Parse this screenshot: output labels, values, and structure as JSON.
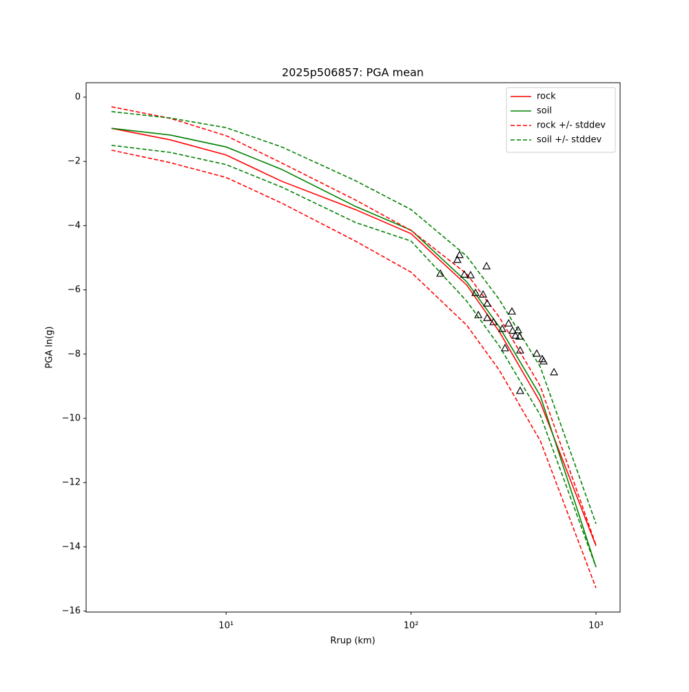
{
  "chart_data": {
    "type": "line",
    "title": "2025p506857: PGA mean",
    "x_label": "Rrup (km)",
    "y_label": "PGA ln(g)",
    "xscale": "log",
    "xlim": [
      1.75,
      1350
    ],
    "ylim": [
      -16.03,
      0.45
    ],
    "xticks": [
      {
        "value": 10,
        "label": "10¹"
      },
      {
        "value": 100,
        "label": "10²"
      },
      {
        "value": 1000,
        "label": "10³"
      }
    ],
    "yticks": [
      {
        "value": -16,
        "label": "−16"
      },
      {
        "value": -14,
        "label": "−14"
      },
      {
        "value": -12,
        "label": "−12"
      },
      {
        "value": -10,
        "label": "−10"
      },
      {
        "value": -8,
        "label": "−8"
      },
      {
        "value": -6,
        "label": "−6"
      },
      {
        "value": -4,
        "label": "−4"
      },
      {
        "value": -2,
        "label": "−2"
      },
      0
    ],
    "legend": "upper right",
    "x": [
      2.4,
      5,
      10,
      20,
      50,
      100,
      200,
      300,
      500,
      1000
    ],
    "series": [
      {
        "name": "rock",
        "color": "#ff0000",
        "style": "solid",
        "values": [
          -0.97,
          -1.33,
          -1.8,
          -2.62,
          -3.5,
          -4.25,
          -5.85,
          -7.3,
          -9.5,
          -13.97
        ]
      },
      {
        "name": "soil",
        "color": "#008000",
        "style": "solid",
        "values": [
          -0.97,
          -1.18,
          -1.55,
          -2.25,
          -3.4,
          -4.14,
          -5.75,
          -7.15,
          -9.3,
          -14.63
        ]
      },
      {
        "name": "rock +/- stddev",
        "color": "#ff0000",
        "style": "dashed",
        "values": [
          -0.3,
          -0.66,
          -1.2,
          -2.05,
          -3.2,
          -4.15,
          -5.5,
          -6.85,
          -9.0,
          -13.95
        ]
      },
      {
        "name": "soil +/- stddev",
        "color": "#008000",
        "style": "dashed",
        "values": [
          -0.45,
          -0.65,
          -0.95,
          -1.55,
          -2.6,
          -3.5,
          -4.95,
          -6.3,
          -8.4,
          -13.28
        ]
      },
      {
        "color": "#ff0000",
        "style": "dashed",
        "values": [
          -1.65,
          -2.04,
          -2.5,
          -3.3,
          -4.48,
          -5.45,
          -7.1,
          -8.5,
          -10.7,
          -15.28
        ]
      },
      {
        "color": "#008000",
        "style": "dashed",
        "values": [
          -1.5,
          -1.72,
          -2.1,
          -2.8,
          -3.9,
          -4.48,
          -6.35,
          -7.75,
          -9.9,
          -14.63
        ]
      }
    ],
    "observations": {
      "color": "#000000",
      "marker": "triangle",
      "x": [
        144,
        178,
        183,
        194,
        210,
        256,
        223,
        245,
        258,
        231,
        258,
        279,
        311,
        337,
        351,
        354,
        367,
        379,
        386,
        389,
        322,
        389,
        478,
        512,
        521,
        593
      ],
      "y": [
        -5.49,
        -5.06,
        -4.91,
        -5.52,
        -5.54,
        -5.26,
        -6.09,
        -6.14,
        -6.42,
        -6.78,
        -6.87,
        -7.0,
        -7.21,
        -7.04,
        -6.67,
        -7.27,
        -7.42,
        -7.25,
        -7.45,
        -7.88,
        -7.81,
        -9.14,
        -7.98,
        -8.15,
        -8.22,
        -8.56
      ]
    }
  }
}
